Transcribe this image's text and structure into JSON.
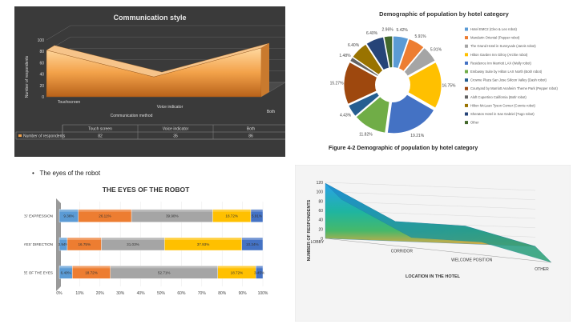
{
  "communication_chart": {
    "chart_data": {
      "type": "area",
      "title": "Communication style",
      "xlabel": "Communication method",
      "ylabel": "Number of respondents",
      "categories": [
        "Touchscreen",
        "Voice indicator",
        "Both"
      ],
      "table_categories": [
        "Touch screen",
        "Voice indicator",
        "Both"
      ],
      "series": [
        {
          "name": "Number of respondents",
          "values": [
            82,
            35,
            86
          ]
        }
      ],
      "ylim": [
        0,
        100
      ],
      "yticks": [
        0,
        20,
        40,
        60,
        80,
        100
      ],
      "legend": "data-table"
    }
  },
  "hotel_chart": {
    "chart_data": {
      "type": "pie",
      "title": "Demographic of population by hotel category",
      "labels": [
        "Hotel EMC2 (Cleo & Leo robot)",
        "Mandarin Oriental (Pepper robot)",
        "The Grand Hotel in Sunnyvale (Jarvis robot)",
        "Hilton Garden Inn Gilroy (Archie robot)",
        "Residence Inn Marriott LAX (Wally robot)",
        "Embassy Suite by Hilton LAX North (Botlr robot)",
        "Crowne Plaza San Jose Silicon Valley (Dash robot)",
        "Courtyard by Marriott Anaheim Theme Park (Pepper robot)",
        "Aloft Cupertino California (Botlr robot)",
        "Hilton McLean Tyson Corner (Connie robot)",
        "Sheraton Hotel in San Gabriel (Tugo robot)",
        "Other"
      ],
      "values": [
        5.42,
        5.91,
        5.91,
        16.75,
        19.21,
        11.82,
        4.43,
        15.27,
        1.48,
        6.4,
        6.4,
        2.96
      ],
      "value_labels": [
        "5.42%",
        "5.91%",
        "5.91%",
        "16.75%",
        "19.21%",
        "11.82%",
        "4.43%",
        "15.27%",
        "1.48%",
        "6.40%",
        "6.40%",
        "2.96%"
      ],
      "colors": [
        "#5b9bd5",
        "#ed7d31",
        "#a5a5a5",
        "#ffc000",
        "#4472c4",
        "#70ad47",
        "#255e91",
        "#9e480e",
        "#636363",
        "#997300",
        "#264478",
        "#43682b"
      ],
      "legend": "right"
    },
    "caption": "Figure 4-2 Demographic of population by hotel category"
  },
  "eyes_section": {
    "bullet": "The eyes of the robot"
  },
  "eyes_chart": {
    "chart_data": {
      "type": "bar",
      "title": "THE EYES OF THE ROBOT",
      "orientation": "horizontal",
      "stacked": "percent",
      "categories": [
        "THE EYES' EXPRESSION",
        "THE EYES' DIRECTION",
        "SIZE OF THE EYES"
      ],
      "series": [
        {
          "values": [
            9.36,
            3.94,
            6.4
          ],
          "labels": [
            "9.36%",
            "3.94%",
            "6.40%"
          ]
        },
        {
          "values": [
            26.11,
            16.75,
            18.72
          ],
          "labels": [
            "26.11%",
            "16.75%",
            "18.72%"
          ]
        },
        {
          "values": [
            39.9,
            31.03,
            52.71
          ],
          "labels": [
            "39.90%",
            "31.03%",
            "52.71%"
          ]
        },
        {
          "values": [
            18.72,
            37.93,
            18.72
          ],
          "labels": [
            "18.72%",
            "37.93%",
            "18.72%"
          ]
        },
        {
          "values": [
            5.91,
            10.34,
            3.45
          ],
          "labels": [
            "5.91%",
            "10.34%",
            "3.45%"
          ]
        }
      ],
      "colors": [
        "#5b9bd5",
        "#ed7d31",
        "#a5a5a5",
        "#ffc000",
        "#4472c4"
      ],
      "xlim": [
        0,
        100
      ],
      "xticks": [
        "0%",
        "10%",
        "20%",
        "30%",
        "40%",
        "50%",
        "60%",
        "70%",
        "80%",
        "90%",
        "100%"
      ]
    }
  },
  "location_chart": {
    "chart_data": {
      "type": "area",
      "xlabel": "LOCATION IN THE HOTEL",
      "ylabel": "NUMBER OF RESPONDENTS",
      "categories": [
        "LOBBY",
        "CORRIDOR",
        "WELCOME POSITION",
        "OTHER"
      ],
      "values": [
        118,
        42,
        38,
        0
      ],
      "ylim": [
        0,
        120
      ],
      "yticks": [
        0,
        20,
        40,
        60,
        80,
        100,
        120
      ],
      "grid": true
    }
  }
}
